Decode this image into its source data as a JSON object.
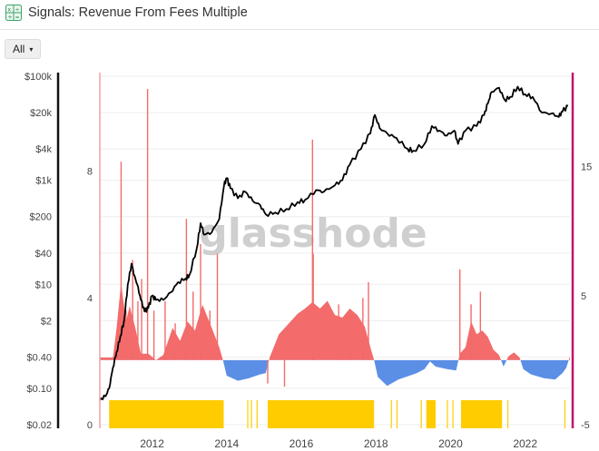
{
  "header": {
    "title": "Signals: Revenue From Fees Multiple",
    "icon": "spreadsheet-icon"
  },
  "controls": {
    "range_label": "All",
    "caret": "▾"
  },
  "watermark": "glasshode",
  "chart_data": {
    "type": "line",
    "title": "Signals: Revenue From Fees Multiple",
    "x_range": [
      2010.6,
      2023.2
    ],
    "x_ticks": [
      {
        "label": "2012",
        "value": 2012
      },
      {
        "label": "2014",
        "value": 2014
      },
      {
        "label": "2016",
        "value": 2016
      },
      {
        "label": "2018",
        "value": 2018
      },
      {
        "label": "2020",
        "value": 2020
      },
      {
        "label": "2022",
        "value": 2022
      }
    ],
    "y_price_axis": {
      "scale": "log",
      "range": [
        0.02,
        100000
      ],
      "ticks": [
        {
          "label": "$100k",
          "value": 100000
        },
        {
          "label": "$20k",
          "value": 20000
        },
        {
          "label": "$4k",
          "value": 4000
        },
        {
          "label": "$1k",
          "value": 1000
        },
        {
          "label": "$200",
          "value": 200
        },
        {
          "label": "$40",
          "value": 40
        },
        {
          "label": "$10",
          "value": 10
        },
        {
          "label": "$2",
          "value": 2
        },
        {
          "label": "$0.40",
          "value": 0.4
        },
        {
          "label": "$0.10",
          "value": 0.1
        },
        {
          "label": "$0.02",
          "value": 0.02
        }
      ]
    },
    "y_multiple_axis": {
      "range": [
        0,
        11
      ],
      "ticks": [
        {
          "label": "8",
          "value": 8
        },
        {
          "label": "4",
          "value": 4
        },
        {
          "label": "0",
          "value": 0
        }
      ]
    },
    "y_oscillator_axis": {
      "range": [
        -5,
        22
      ],
      "ticks": [
        {
          "label": "15",
          "value": 15
        },
        {
          "label": "5",
          "value": 5
        },
        {
          "label": "-5",
          "value": -5
        }
      ]
    },
    "colors": {
      "price": "#000000",
      "positive": "#f36b6b",
      "negative": "#5b8fe6",
      "signal": "#ffcc00",
      "left_axis": "#111111",
      "right_axis": "#c0136b"
    },
    "grid": true,
    "series": [
      {
        "key": "price",
        "axis": "price",
        "points": [
          [
            2010.6,
            0.06
          ],
          [
            2010.75,
            0.07
          ],
          [
            2010.85,
            0.1
          ],
          [
            2010.95,
            0.25
          ],
          [
            2011.05,
            0.5
          ],
          [
            2011.15,
            1.0
          ],
          [
            2011.25,
            2.0
          ],
          [
            2011.35,
            10.0
          ],
          [
            2011.45,
            25.0
          ],
          [
            2011.52,
            15.0
          ],
          [
            2011.6,
            10.0
          ],
          [
            2011.7,
            5.0
          ],
          [
            2011.8,
            3.0
          ],
          [
            2011.9,
            3.5
          ],
          [
            2012.0,
            6.0
          ],
          [
            2012.1,
            5.0
          ],
          [
            2012.3,
            5.0
          ],
          [
            2012.5,
            7.0
          ],
          [
            2012.7,
            11.0
          ],
          [
            2012.9,
            13.0
          ],
          [
            2013.0,
            15.0
          ],
          [
            2013.2,
            50.0
          ],
          [
            2013.3,
            150.0
          ],
          [
            2013.4,
            90.0
          ],
          [
            2013.6,
            100.0
          ],
          [
            2013.8,
            180.0
          ],
          [
            2013.93,
            800.0
          ],
          [
            2014.0,
            1100.0
          ],
          [
            2014.1,
            700.0
          ],
          [
            2014.3,
            450.0
          ],
          [
            2014.5,
            600.0
          ],
          [
            2014.7,
            400.0
          ],
          [
            2014.9,
            330.0
          ],
          [
            2015.05,
            220.0
          ],
          [
            2015.3,
            240.0
          ],
          [
            2015.6,
            280.0
          ],
          [
            2015.9,
            380.0
          ],
          [
            2016.1,
            420.0
          ],
          [
            2016.4,
            650.0
          ],
          [
            2016.6,
            600.0
          ],
          [
            2016.9,
            800.0
          ],
          [
            2017.1,
            1000.0
          ],
          [
            2017.3,
            2000.0
          ],
          [
            2017.6,
            4000.0
          ],
          [
            2017.85,
            8000.0
          ],
          [
            2017.97,
            18000.0
          ],
          [
            2018.1,
            10000.0
          ],
          [
            2018.3,
            8000.0
          ],
          [
            2018.55,
            6500.0
          ],
          [
            2018.85,
            4000.0
          ],
          [
            2019.0,
            3700.0
          ],
          [
            2019.3,
            5000.0
          ],
          [
            2019.5,
            11000.0
          ],
          [
            2019.7,
            9000.0
          ],
          [
            2019.9,
            7200.0
          ],
          [
            2020.1,
            9000.0
          ],
          [
            2020.2,
            5000.0
          ],
          [
            2020.4,
            9000.0
          ],
          [
            2020.7,
            11000.0
          ],
          [
            2020.9,
            18000.0
          ],
          [
            2021.0,
            30000.0
          ],
          [
            2021.1,
            50000.0
          ],
          [
            2021.3,
            60000.0
          ],
          [
            2021.45,
            35000.0
          ],
          [
            2021.6,
            40000.0
          ],
          [
            2021.8,
            63000.0
          ],
          [
            2022.0,
            45000.0
          ],
          [
            2022.2,
            40000.0
          ],
          [
            2022.45,
            20000.0
          ],
          [
            2022.7,
            19000.0
          ],
          [
            2022.9,
            16500.0
          ],
          [
            2023.0,
            21000.0
          ],
          [
            2023.15,
            27000.0
          ]
        ]
      },
      {
        "key": "multiple_spikes",
        "axis": "multiple",
        "points": [
          [
            2011.17,
            8.3
          ],
          [
            2011.3,
            3.6
          ],
          [
            2011.48,
            5.2
          ],
          [
            2011.62,
            3.9
          ],
          [
            2011.72,
            4.6
          ],
          [
            2011.88,
            10.6
          ],
          [
            2012.05,
            3.6
          ],
          [
            2012.35,
            3.9
          ],
          [
            2012.62,
            3.2
          ],
          [
            2012.92,
            6.5
          ],
          [
            2013.1,
            4.2
          ],
          [
            2013.3,
            5.7
          ],
          [
            2013.55,
            3.6
          ],
          [
            2013.75,
            5.4
          ],
          [
            2015.1,
            1.3
          ],
          [
            2015.55,
            1.2
          ],
          [
            2016.3,
            9.0
          ],
          [
            2016.32,
            5.4
          ],
          [
            2017.0,
            3.8
          ],
          [
            2017.3,
            3.5
          ],
          [
            2017.65,
            4.0
          ],
          [
            2017.8,
            4.5
          ],
          [
            2020.25,
            4.9
          ],
          [
            2020.55,
            3.8
          ],
          [
            2020.8,
            4.2
          ]
        ]
      },
      {
        "key": "oscillator",
        "axis": "oscillator",
        "points": [
          [
            2010.6,
            0.2
          ],
          [
            2010.95,
            0.2
          ],
          [
            2011.05,
            2.5
          ],
          [
            2011.17,
            6.0
          ],
          [
            2011.3,
            3.0
          ],
          [
            2011.4,
            4.2
          ],
          [
            2011.55,
            2.5
          ],
          [
            2011.7,
            0.5
          ],
          [
            2011.9,
            0.5
          ],
          [
            2012.1,
            0.0
          ],
          [
            2012.3,
            0.4
          ],
          [
            2012.55,
            2.5
          ],
          [
            2012.75,
            1.5
          ],
          [
            2012.95,
            3.0
          ],
          [
            2013.15,
            2.3
          ],
          [
            2013.35,
            4.3
          ],
          [
            2013.6,
            2.5
          ],
          [
            2013.8,
            1.0
          ],
          [
            2013.9,
            0.0
          ],
          [
            2014.0,
            -1.2
          ],
          [
            2014.3,
            -1.6
          ],
          [
            2014.6,
            -1.4
          ],
          [
            2014.9,
            -1.1
          ],
          [
            2015.05,
            -1.0
          ],
          [
            2015.15,
            0.2
          ],
          [
            2015.4,
            2.0
          ],
          [
            2015.65,
            2.8
          ],
          [
            2015.9,
            3.6
          ],
          [
            2016.1,
            4.0
          ],
          [
            2016.3,
            4.5
          ],
          [
            2016.5,
            4.0
          ],
          [
            2016.7,
            4.6
          ],
          [
            2016.9,
            3.5
          ],
          [
            2017.1,
            3.3
          ],
          [
            2017.3,
            4.0
          ],
          [
            2017.5,
            3.5
          ],
          [
            2017.7,
            2.6
          ],
          [
            2017.85,
            1.0
          ],
          [
            2017.95,
            0.0
          ],
          [
            2018.05,
            -1.3
          ],
          [
            2018.3,
            -2.0
          ],
          [
            2018.6,
            -1.5
          ],
          [
            2018.9,
            -1.2
          ],
          [
            2019.1,
            -1.0
          ],
          [
            2019.3,
            -0.7
          ],
          [
            2019.45,
            -0.1
          ],
          [
            2019.6,
            -0.5
          ],
          [
            2019.9,
            -0.7
          ],
          [
            2020.15,
            -0.8
          ],
          [
            2020.25,
            0.5
          ],
          [
            2020.4,
            1.0
          ],
          [
            2020.55,
            3.0
          ],
          [
            2020.7,
            2.0
          ],
          [
            2020.85,
            2.3
          ],
          [
            2021.0,
            1.8
          ],
          [
            2021.15,
            0.8
          ],
          [
            2021.3,
            0.4
          ],
          [
            2021.42,
            -0.5
          ],
          [
            2021.55,
            0.3
          ],
          [
            2021.7,
            0.6
          ],
          [
            2021.85,
            0.2
          ],
          [
            2021.95,
            -0.7
          ],
          [
            2022.15,
            -1.1
          ],
          [
            2022.5,
            -1.4
          ],
          [
            2022.8,
            -1.5
          ],
          [
            2023.0,
            -1.0
          ],
          [
            2023.1,
            -0.6
          ],
          [
            2023.2,
            0.3
          ]
        ]
      }
    ],
    "signal_periods": [
      [
        2010.85,
        2013.92
      ],
      [
        2014.55,
        2014.57
      ],
      [
        2014.65,
        2014.67
      ],
      [
        2014.8,
        2014.82
      ],
      [
        2015.1,
        2017.95
      ],
      [
        2018.4,
        2018.41
      ],
      [
        2018.55,
        2018.56
      ],
      [
        2019.2,
        2019.21
      ],
      [
        2019.35,
        2019.6
      ],
      [
        2019.9,
        2019.91
      ],
      [
        2020.05,
        2020.06
      ],
      [
        2020.28,
        2021.38
      ],
      [
        2021.52,
        2021.54
      ],
      [
        2023.05,
        2023.06
      ]
    ]
  }
}
